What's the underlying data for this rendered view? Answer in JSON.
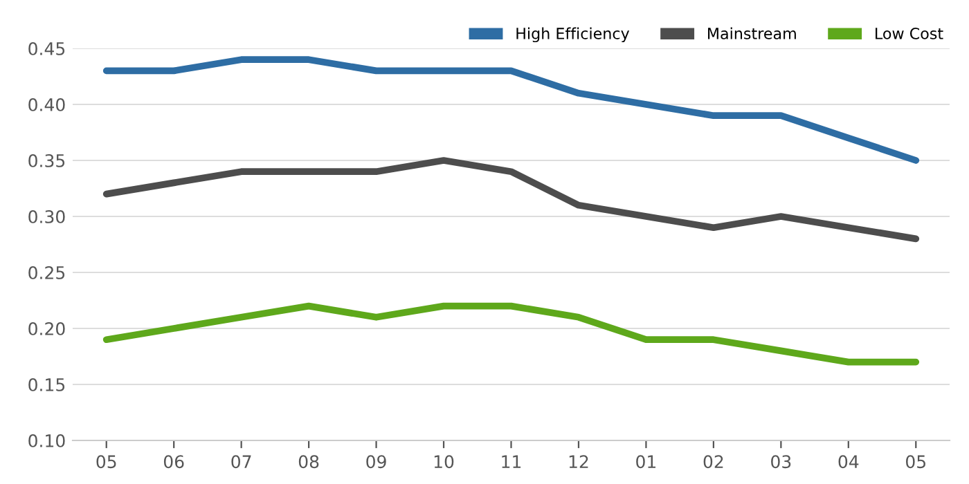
{
  "chart_data": {
    "type": "line",
    "categories": [
      "05",
      "06",
      "07",
      "08",
      "09",
      "10",
      "11",
      "12",
      "01",
      "02",
      "03",
      "04",
      "05"
    ],
    "series": [
      {
        "name": "High Efficiency",
        "color": "#2e6da4",
        "values": [
          0.43,
          0.43,
          0.44,
          0.44,
          0.43,
          0.43,
          0.43,
          0.41,
          0.4,
          0.39,
          0.39,
          0.37,
          0.35
        ]
      },
      {
        "name": "Mainstream",
        "color": "#4d4d4d",
        "values": [
          0.32,
          0.33,
          0.34,
          0.34,
          0.34,
          0.35,
          0.34,
          0.31,
          0.3,
          0.29,
          0.3,
          0.29,
          0.28
        ]
      },
      {
        "name": "Low Cost",
        "color": "#5ea81b",
        "values": [
          0.19,
          0.2,
          0.21,
          0.22,
          0.21,
          0.22,
          0.22,
          0.21,
          0.19,
          0.19,
          0.18,
          0.17,
          0.17
        ]
      }
    ],
    "ylim": [
      0.1,
      0.45
    ],
    "yticks": [
      {
        "value": 0.1,
        "label": "0.10"
      },
      {
        "value": 0.15,
        "label": "0.15"
      },
      {
        "value": 0.2,
        "label": "0.20"
      },
      {
        "value": 0.25,
        "label": "0.25"
      },
      {
        "value": 0.3,
        "label": "0.30"
      },
      {
        "value": 0.35,
        "label": "0.35"
      },
      {
        "value": 0.4,
        "label": "0.40"
      },
      {
        "value": 0.45,
        "label": "0.45"
      }
    ],
    "grid": "y",
    "legend": "top right",
    "marker": "none",
    "line_style": "solid"
  }
}
